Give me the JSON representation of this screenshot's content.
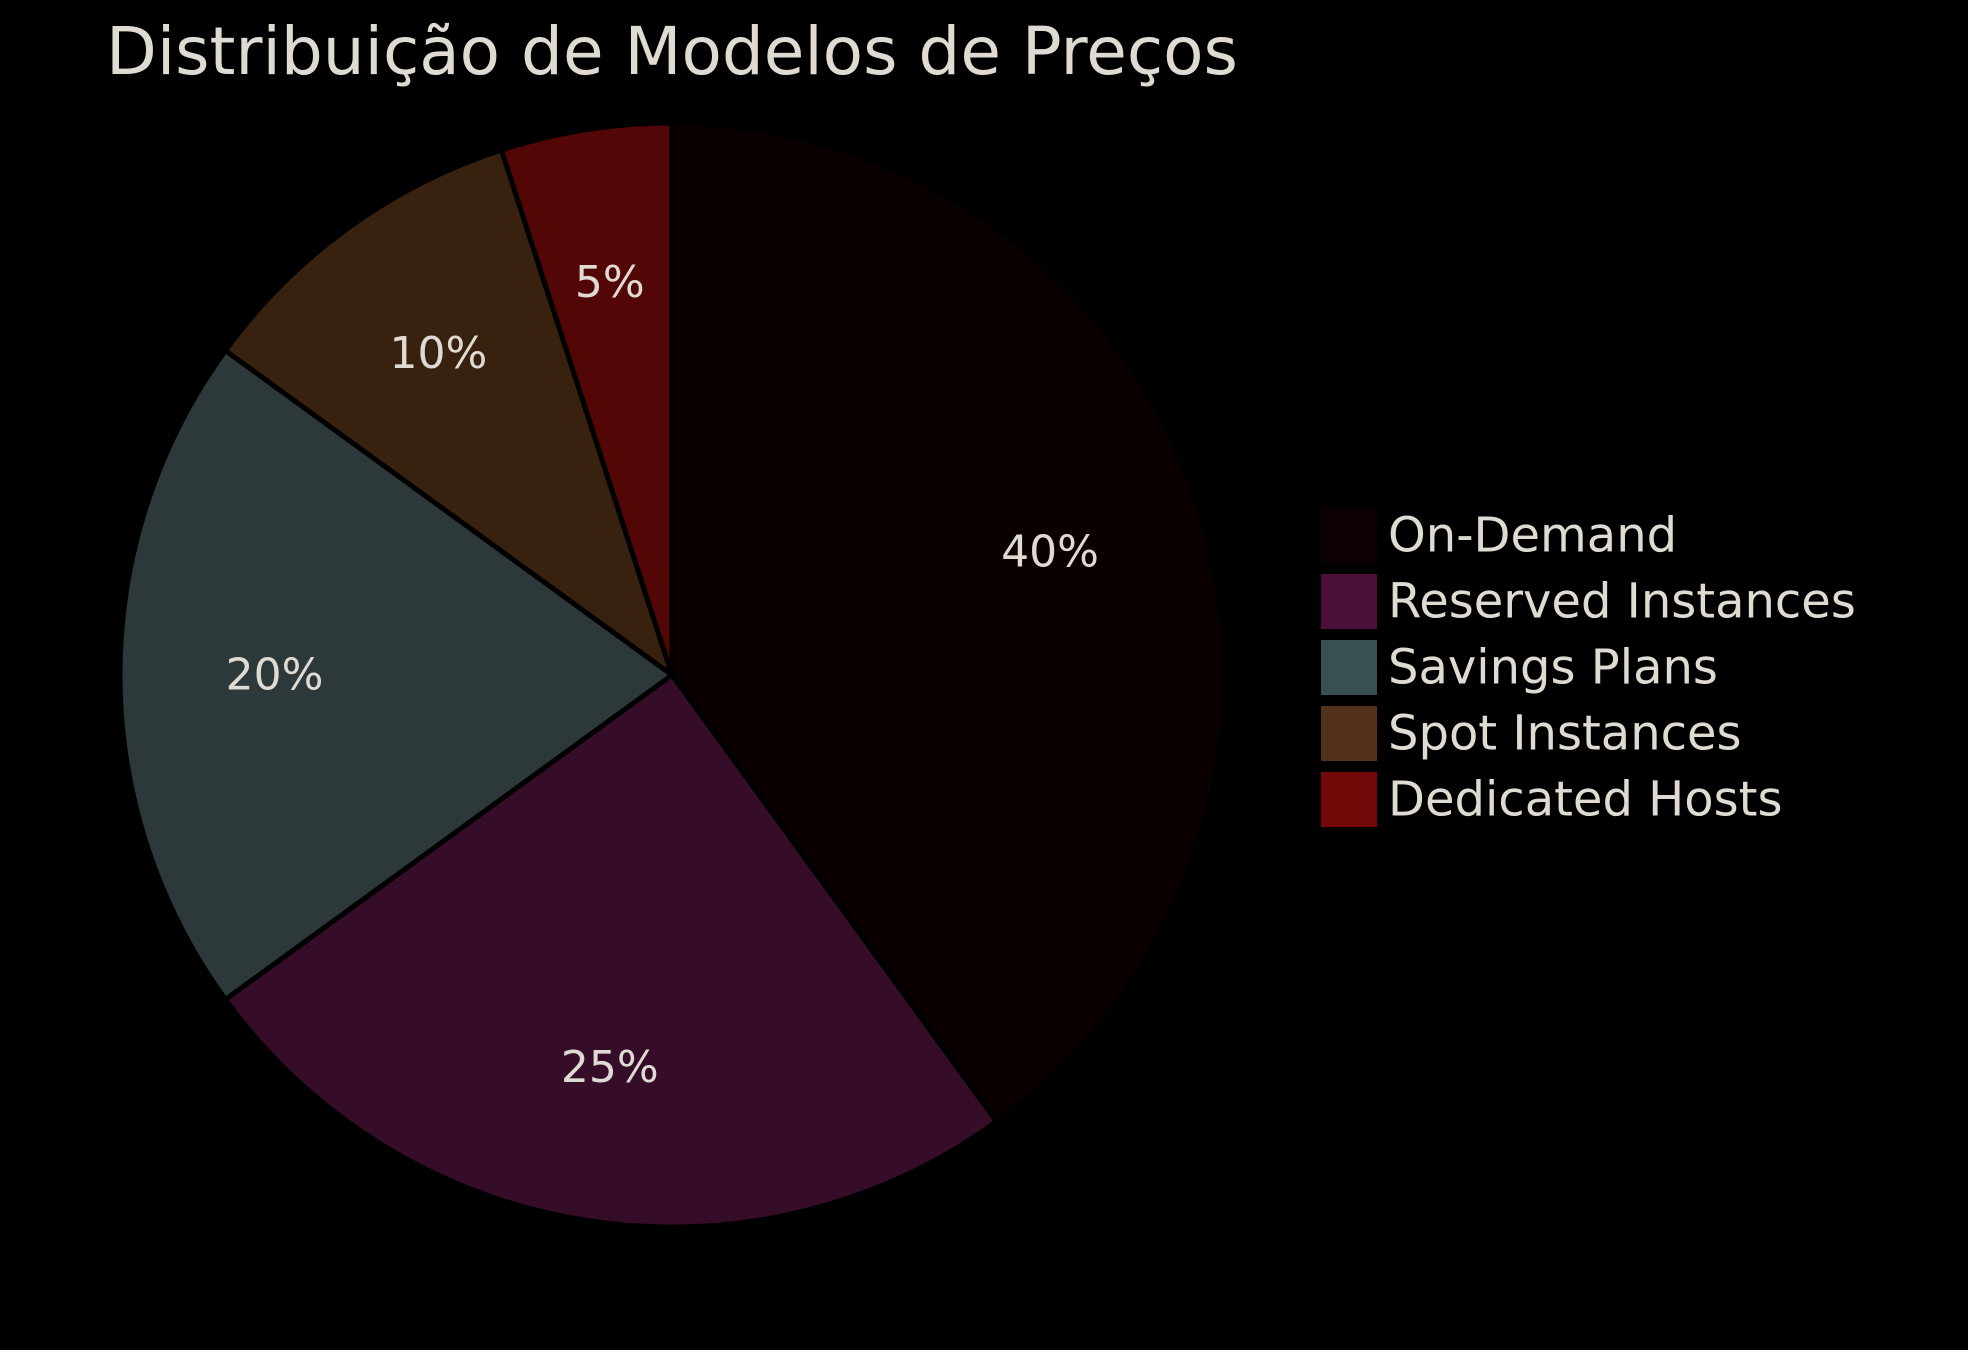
{
  "chart_data": {
    "type": "pie",
    "title": "Distribuição de Modelos de Preços",
    "start": "top",
    "direction": "clockwise",
    "legend_position": "right",
    "slices": [
      {
        "label": "On-Demand",
        "value": 40,
        "value_label": "40%",
        "color": "#0a0000",
        "legend_color": "#0d0002"
      },
      {
        "label": "Reserved Instances",
        "value": 25,
        "value_label": "25%",
        "color": "#360d29",
        "legend_color": "#4b0f38"
      },
      {
        "label": "Savings Plans",
        "value": 20,
        "value_label": "20%",
        "color": "#2c383a",
        "legend_color": "#3a4f52"
      },
      {
        "label": "Spot Instances",
        "value": 10,
        "value_label": "10%",
        "color": "#38220f",
        "legend_color": "#52321c"
      },
      {
        "label": "Dedicated Hosts",
        "value": 5,
        "value_label": "5%",
        "color": "#520606",
        "legend_color": "#730808"
      }
    ]
  }
}
